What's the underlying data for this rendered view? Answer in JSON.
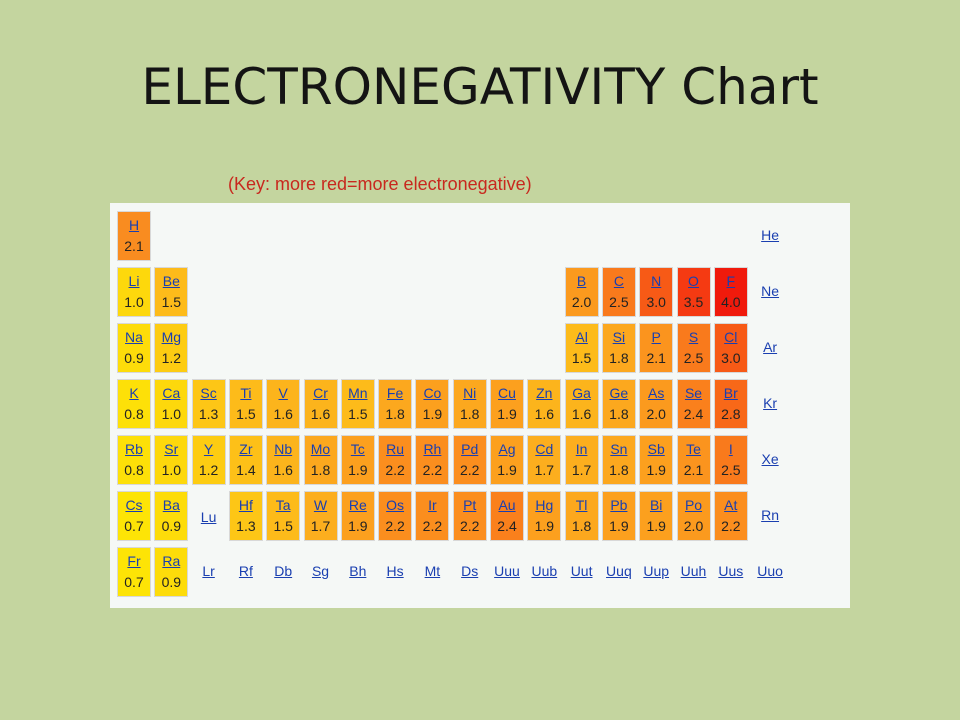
{
  "title": "ELECTRONEGATIVITY Chart",
  "subtitle": "(Key: more red=more electronegative)",
  "colors": {
    "background": "#c4d59f",
    "panel": "#f5f8f6",
    "link": "#1a3fb0",
    "subtitle": "#c8281e"
  },
  "elements": [
    {
      "symbol": "H",
      "en": "2.1",
      "row": 0,
      "col": 0,
      "color": "#f98c20"
    },
    {
      "symbol": "He",
      "en": "",
      "row": 0,
      "col": 17,
      "color": ""
    },
    {
      "symbol": "Li",
      "en": "1.0",
      "row": 1,
      "col": 0,
      "color": "#fdd80c"
    },
    {
      "symbol": "Be",
      "en": "1.5",
      "row": 1,
      "col": 1,
      "color": "#fdbb1a"
    },
    {
      "symbol": "B",
      "en": "2.0",
      "row": 1,
      "col": 12,
      "color": "#fb9a1e"
    },
    {
      "symbol": "C",
      "en": "2.5",
      "row": 1,
      "col": 13,
      "color": "#f97a1c"
    },
    {
      "symbol": "N",
      "en": "3.0",
      "row": 1,
      "col": 14,
      "color": "#f75a16"
    },
    {
      "symbol": "O",
      "en": "3.5",
      "row": 1,
      "col": 15,
      "color": "#f53a12"
    },
    {
      "symbol": "F",
      "en": "4.0",
      "row": 1,
      "col": 16,
      "color": "#f01a0c"
    },
    {
      "symbol": "Ne",
      "en": "",
      "row": 1,
      "col": 17,
      "color": ""
    },
    {
      "symbol": "Na",
      "en": "0.9",
      "row": 2,
      "col": 0,
      "color": "#fddc0a"
    },
    {
      "symbol": "Mg",
      "en": "1.2",
      "row": 2,
      "col": 1,
      "color": "#fdcc12"
    },
    {
      "symbol": "Al",
      "en": "1.5",
      "row": 2,
      "col": 12,
      "color": "#fdbb1a"
    },
    {
      "symbol": "Si",
      "en": "1.8",
      "row": 2,
      "col": 13,
      "color": "#fca81e"
    },
    {
      "symbol": "P",
      "en": "2.1",
      "row": 2,
      "col": 14,
      "color": "#fb941e"
    },
    {
      "symbol": "S",
      "en": "2.5",
      "row": 2,
      "col": 15,
      "color": "#f97a1c"
    },
    {
      "symbol": "Cl",
      "en": "3.0",
      "row": 2,
      "col": 16,
      "color": "#f75a16"
    },
    {
      "symbol": "Ar",
      "en": "",
      "row": 2,
      "col": 17,
      "color": ""
    },
    {
      "symbol": "K",
      "en": "0.8",
      "row": 3,
      "col": 0,
      "color": "#fde008"
    },
    {
      "symbol": "Ca",
      "en": "1.0",
      "row": 3,
      "col": 1,
      "color": "#fdd80c"
    },
    {
      "symbol": "Sc",
      "en": "1.3",
      "row": 3,
      "col": 2,
      "color": "#fdc616"
    },
    {
      "symbol": "Ti",
      "en": "1.5",
      "row": 3,
      "col": 3,
      "color": "#fdbb1a"
    },
    {
      "symbol": "V",
      "en": "1.6",
      "row": 3,
      "col": 4,
      "color": "#fcb41c"
    },
    {
      "symbol": "Cr",
      "en": "1.6",
      "row": 3,
      "col": 5,
      "color": "#fcb41c"
    },
    {
      "symbol": "Mn",
      "en": "1.5",
      "row": 3,
      "col": 6,
      "color": "#fdbb1a"
    },
    {
      "symbol": "Fe",
      "en": "1.8",
      "row": 3,
      "col": 7,
      "color": "#fca81e"
    },
    {
      "symbol": "Co",
      "en": "1.9",
      "row": 3,
      "col": 8,
      "color": "#fca01e"
    },
    {
      "symbol": "Ni",
      "en": "1.8",
      "row": 3,
      "col": 9,
      "color": "#fca81e"
    },
    {
      "symbol": "Cu",
      "en": "1.9",
      "row": 3,
      "col": 10,
      "color": "#fca01e"
    },
    {
      "symbol": "Zn",
      "en": "1.6",
      "row": 3,
      "col": 11,
      "color": "#fcb41c"
    },
    {
      "symbol": "Ga",
      "en": "1.6",
      "row": 3,
      "col": 12,
      "color": "#fcb41c"
    },
    {
      "symbol": "Ge",
      "en": "1.8",
      "row": 3,
      "col": 13,
      "color": "#fca81e"
    },
    {
      "symbol": "As",
      "en": "2.0",
      "row": 3,
      "col": 14,
      "color": "#fb9a1e"
    },
    {
      "symbol": "Se",
      "en": "2.4",
      "row": 3,
      "col": 15,
      "color": "#fa801c"
    },
    {
      "symbol": "Br",
      "en": "2.8",
      "row": 3,
      "col": 16,
      "color": "#f86818"
    },
    {
      "symbol": "Kr",
      "en": "",
      "row": 3,
      "col": 17,
      "color": ""
    },
    {
      "symbol": "Rb",
      "en": "0.8",
      "row": 4,
      "col": 0,
      "color": "#fde008"
    },
    {
      "symbol": "Sr",
      "en": "1.0",
      "row": 4,
      "col": 1,
      "color": "#fdd80c"
    },
    {
      "symbol": "Y",
      "en": "1.2",
      "row": 4,
      "col": 2,
      "color": "#fdcc12"
    },
    {
      "symbol": "Zr",
      "en": "1.4",
      "row": 4,
      "col": 3,
      "color": "#fdc018"
    },
    {
      "symbol": "Nb",
      "en": "1.6",
      "row": 4,
      "col": 4,
      "color": "#fcb41c"
    },
    {
      "symbol": "Mo",
      "en": "1.8",
      "row": 4,
      "col": 5,
      "color": "#fca81e"
    },
    {
      "symbol": "Tc",
      "en": "1.9",
      "row": 4,
      "col": 6,
      "color": "#fca01e"
    },
    {
      "symbol": "Ru",
      "en": "2.2",
      "row": 4,
      "col": 7,
      "color": "#fb8e1e"
    },
    {
      "symbol": "Rh",
      "en": "2.2",
      "row": 4,
      "col": 8,
      "color": "#fb8e1e"
    },
    {
      "symbol": "Pd",
      "en": "2.2",
      "row": 4,
      "col": 9,
      "color": "#fb8e1e"
    },
    {
      "symbol": "Ag",
      "en": "1.9",
      "row": 4,
      "col": 10,
      "color": "#fca01e"
    },
    {
      "symbol": "Cd",
      "en": "1.7",
      "row": 4,
      "col": 11,
      "color": "#fcae1e"
    },
    {
      "symbol": "In",
      "en": "1.7",
      "row": 4,
      "col": 12,
      "color": "#fcae1e"
    },
    {
      "symbol": "Sn",
      "en": "1.8",
      "row": 4,
      "col": 13,
      "color": "#fca81e"
    },
    {
      "symbol": "Sb",
      "en": "1.9",
      "row": 4,
      "col": 14,
      "color": "#fca01e"
    },
    {
      "symbol": "Te",
      "en": "2.1",
      "row": 4,
      "col": 15,
      "color": "#fb941e"
    },
    {
      "symbol": "I",
      "en": "2.5",
      "row": 4,
      "col": 16,
      "color": "#f97a1c"
    },
    {
      "symbol": "Xe",
      "en": "",
      "row": 4,
      "col": 17,
      "color": ""
    },
    {
      "symbol": "Cs",
      "en": "0.7",
      "row": 5,
      "col": 0,
      "color": "#fde406"
    },
    {
      "symbol": "Ba",
      "en": "0.9",
      "row": 5,
      "col": 1,
      "color": "#fddc0a"
    },
    {
      "symbol": "Lu",
      "en": "",
      "row": 5,
      "col": 2,
      "color": ""
    },
    {
      "symbol": "Hf",
      "en": "1.3",
      "row": 5,
      "col": 3,
      "color": "#fdc616"
    },
    {
      "symbol": "Ta",
      "en": "1.5",
      "row": 5,
      "col": 4,
      "color": "#fdbb1a"
    },
    {
      "symbol": "W",
      "en": "1.7",
      "row": 5,
      "col": 5,
      "color": "#fcae1e"
    },
    {
      "symbol": "Re",
      "en": "1.9",
      "row": 5,
      "col": 6,
      "color": "#fca01e"
    },
    {
      "symbol": "Os",
      "en": "2.2",
      "row": 5,
      "col": 7,
      "color": "#fb8e1e"
    },
    {
      "symbol": "Ir",
      "en": "2.2",
      "row": 5,
      "col": 8,
      "color": "#fb8e1e"
    },
    {
      "symbol": "Pt",
      "en": "2.2",
      "row": 5,
      "col": 9,
      "color": "#fb8e1e"
    },
    {
      "symbol": "Au",
      "en": "2.4",
      "row": 5,
      "col": 10,
      "color": "#fa801c"
    },
    {
      "symbol": "Hg",
      "en": "1.9",
      "row": 5,
      "col": 11,
      "color": "#fca01e"
    },
    {
      "symbol": "Tl",
      "en": "1.8",
      "row": 5,
      "col": 12,
      "color": "#fca81e"
    },
    {
      "symbol": "Pb",
      "en": "1.9",
      "row": 5,
      "col": 13,
      "color": "#fca01e"
    },
    {
      "symbol": "Bi",
      "en": "1.9",
      "row": 5,
      "col": 14,
      "color": "#fca01e"
    },
    {
      "symbol": "Po",
      "en": "2.0",
      "row": 5,
      "col": 15,
      "color": "#fb9a1e"
    },
    {
      "symbol": "At",
      "en": "2.2",
      "row": 5,
      "col": 16,
      "color": "#fb8e1e"
    },
    {
      "symbol": "Rn",
      "en": "",
      "row": 5,
      "col": 17,
      "color": ""
    },
    {
      "symbol": "Fr",
      "en": "0.7",
      "row": 6,
      "col": 0,
      "color": "#fde406"
    },
    {
      "symbol": "Ra",
      "en": "0.9",
      "row": 6,
      "col": 1,
      "color": "#fddc0a"
    },
    {
      "symbol": "Lr",
      "en": "",
      "row": 6,
      "col": 2,
      "color": ""
    },
    {
      "symbol": "Rf",
      "en": "",
      "row": 6,
      "col": 3,
      "color": ""
    },
    {
      "symbol": "Db",
      "en": "",
      "row": 6,
      "col": 4,
      "color": ""
    },
    {
      "symbol": "Sg",
      "en": "",
      "row": 6,
      "col": 5,
      "color": ""
    },
    {
      "symbol": "Bh",
      "en": "",
      "row": 6,
      "col": 6,
      "color": ""
    },
    {
      "symbol": "Hs",
      "en": "",
      "row": 6,
      "col": 7,
      "color": ""
    },
    {
      "symbol": "Mt",
      "en": "",
      "row": 6,
      "col": 8,
      "color": ""
    },
    {
      "symbol": "Ds",
      "en": "",
      "row": 6,
      "col": 9,
      "color": ""
    },
    {
      "symbol": "Uuu",
      "en": "",
      "row": 6,
      "col": 10,
      "color": ""
    },
    {
      "symbol": "Uub",
      "en": "",
      "row": 6,
      "col": 11,
      "color": ""
    },
    {
      "symbol": "Uut",
      "en": "",
      "row": 6,
      "col": 12,
      "color": ""
    },
    {
      "symbol": "Uuq",
      "en": "",
      "row": 6,
      "col": 13,
      "color": ""
    },
    {
      "symbol": "Uup",
      "en": "",
      "row": 6,
      "col": 14,
      "color": ""
    },
    {
      "symbol": "Uuh",
      "en": "",
      "row": 6,
      "col": 15,
      "color": ""
    },
    {
      "symbol": "Uus",
      "en": "",
      "row": 6,
      "col": 16,
      "color": ""
    },
    {
      "symbol": "Uuo",
      "en": "",
      "row": 6,
      "col": 17,
      "color": ""
    }
  ]
}
